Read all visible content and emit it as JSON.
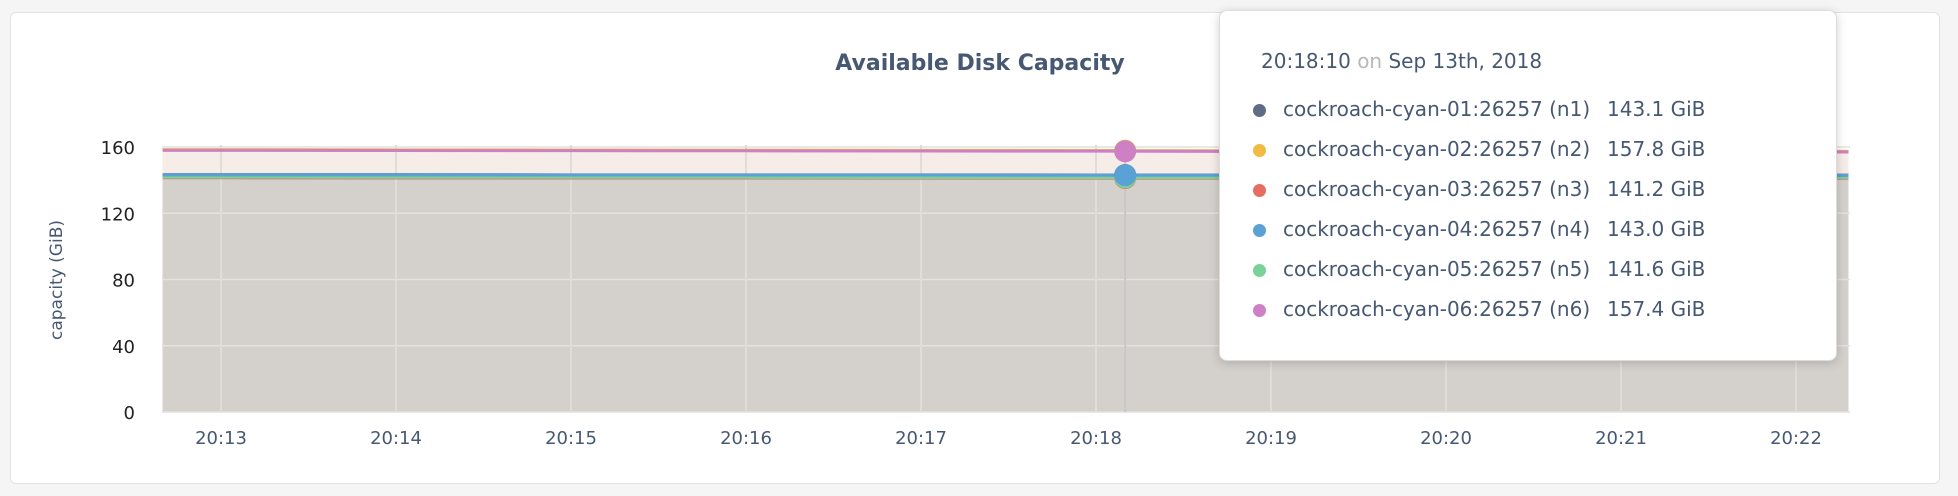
{
  "chart_data": {
    "type": "area",
    "title": "Available Disk Capacity",
    "xlabel": "",
    "ylabel": "capacity (GiB)",
    "ylim": [
      0,
      160
    ],
    "yticks": [
      0,
      40,
      80,
      120,
      160
    ],
    "x_tick_labels": [
      "20:13",
      "20:14",
      "20:15",
      "20:16",
      "20:17",
      "20:18",
      "20:19",
      "20:20",
      "20:21",
      "20:22"
    ],
    "grid": true,
    "x": [
      "20:12:40",
      "20:13",
      "20:14",
      "20:15",
      "20:16",
      "20:17",
      "20:18",
      "20:19",
      "20:20",
      "20:21",
      "20:22",
      "20:22:18"
    ],
    "series": [
      {
        "name": "cockroach-cyan-01:26257 (n1)",
        "color": "#5f6c87",
        "values": [
          143.3,
          143.3,
          143.3,
          143.2,
          143.2,
          143.2,
          143.1,
          143.1,
          143.1,
          143.0,
          143.0,
          143.0
        ]
      },
      {
        "name": "cockroach-cyan-02:26257 (n2)",
        "color": "#f0bb40",
        "values": [
          158.4,
          158.4,
          158.3,
          158.2,
          158.1,
          158.0,
          157.9,
          157.7,
          157.6,
          157.5,
          157.4,
          157.4
        ]
      },
      {
        "name": "cockroach-cyan-03:26257 (n3)",
        "color": "#e56d61",
        "values": [
          141.4,
          141.4,
          141.3,
          141.3,
          141.3,
          141.2,
          141.2,
          141.2,
          141.1,
          141.1,
          141.1,
          141.1
        ]
      },
      {
        "name": "cockroach-cyan-04:26257 (n4)",
        "color": "#5aa1d6",
        "values": [
          143.2,
          143.2,
          143.2,
          143.1,
          143.1,
          143.1,
          143.0,
          143.0,
          143.0,
          142.9,
          142.9,
          142.9
        ]
      },
      {
        "name": "cockroach-cyan-05:26257 (n5)",
        "color": "#7ad199",
        "values": [
          141.8,
          141.8,
          141.7,
          141.7,
          141.7,
          141.6,
          141.6,
          141.6,
          141.5,
          141.5,
          141.5,
          141.5
        ]
      },
      {
        "name": "cockroach-cyan-06:26257 (n6)",
        "color": "#cd81c4",
        "values": [
          158.0,
          158.0,
          157.9,
          157.8,
          157.7,
          157.6,
          157.5,
          157.3,
          157.2,
          157.1,
          157.0,
          157.0
        ]
      }
    ]
  },
  "tooltip": {
    "time": "20:18:10",
    "on": "on",
    "date": "Sep 13th, 2018",
    "hover_x": "20:18:10",
    "rows": [
      {
        "label": "cockroach-cyan-01:26257 (n1)",
        "value": "143.1 GiB",
        "color": "#5f6c87"
      },
      {
        "label": "cockroach-cyan-02:26257 (n2)",
        "value": "157.8 GiB",
        "color": "#f0bb40"
      },
      {
        "label": "cockroach-cyan-03:26257 (n3)",
        "value": "141.2 GiB",
        "color": "#e56d61"
      },
      {
        "label": "cockroach-cyan-04:26257 (n4)",
        "value": "143.0 GiB",
        "color": "#5aa1d6"
      },
      {
        "label": "cockroach-cyan-05:26257 (n5)",
        "value": "141.6 GiB",
        "color": "#7ad199"
      },
      {
        "label": "cockroach-cyan-06:26257 (n6)",
        "value": "157.4 GiB",
        "color": "#cd81c4"
      }
    ]
  }
}
